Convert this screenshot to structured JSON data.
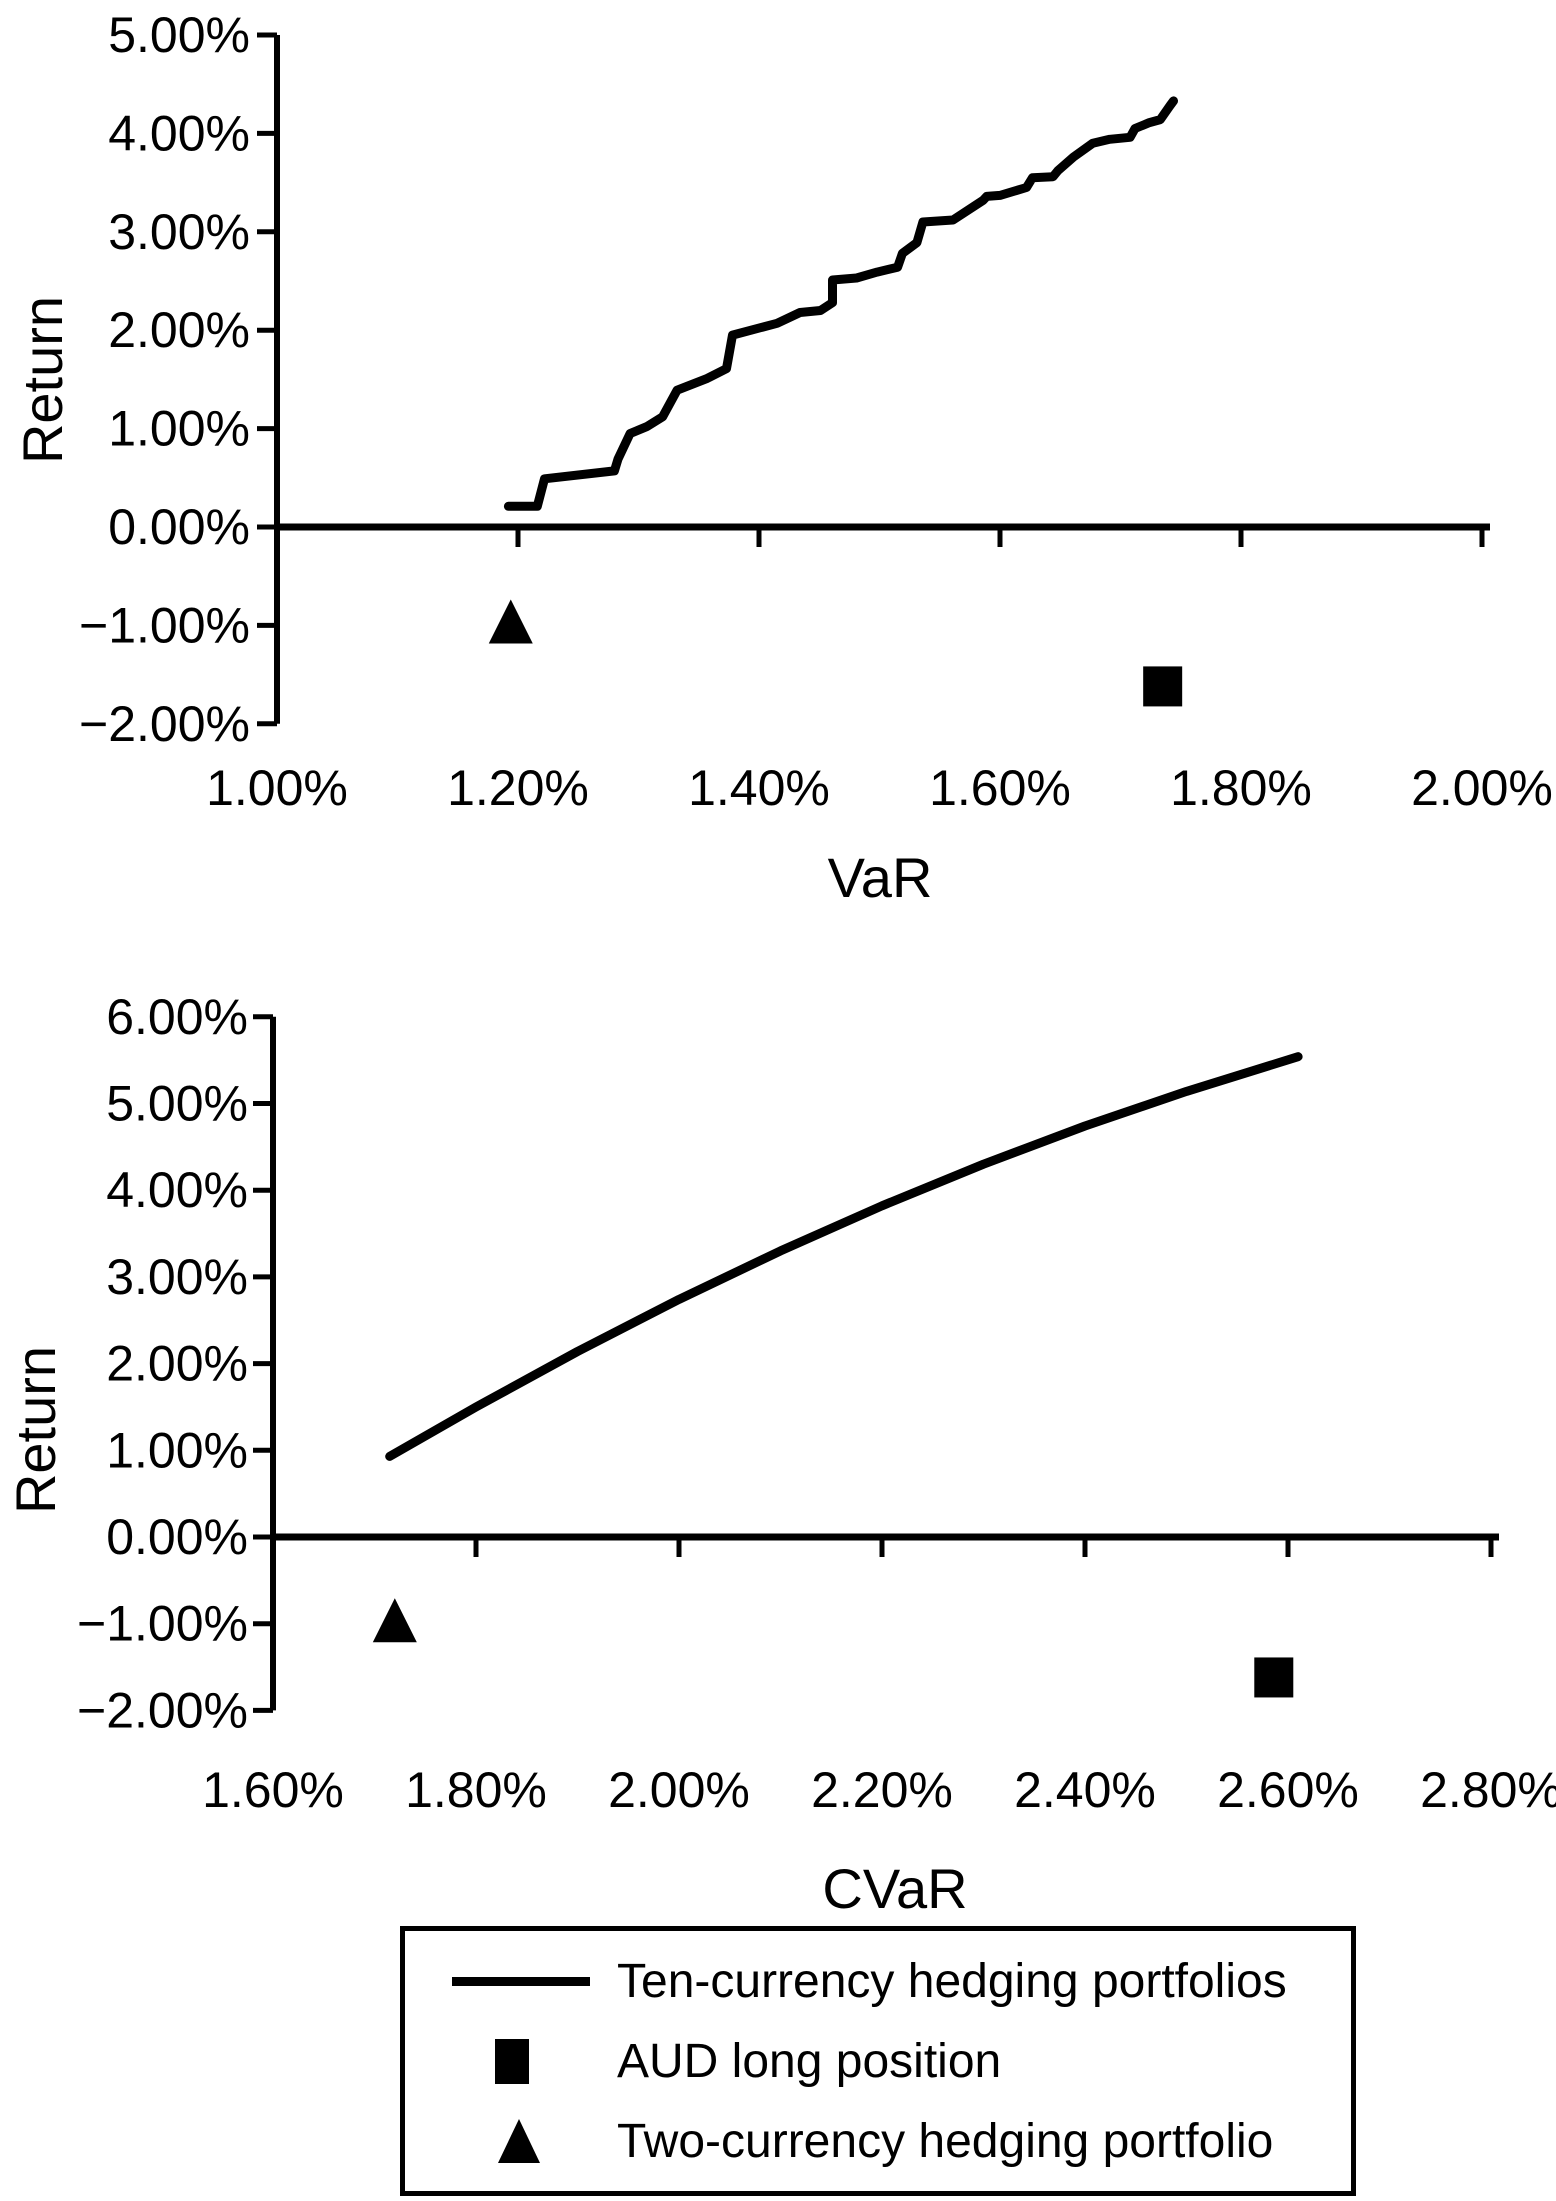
{
  "figure": {
    "background": "#ffffff",
    "ink": "#000000"
  },
  "chart_data": [
    {
      "type": "line",
      "title": "",
      "xlabel": "VaR",
      "ylabel": "Return",
      "xlim": [
        1.0,
        2.0
      ],
      "ylim": [
        -2.0,
        5.0
      ],
      "grid": false,
      "x_ticks": [
        {
          "v": 1.0,
          "label": "1.00%"
        },
        {
          "v": 1.2,
          "label": "1.20%"
        },
        {
          "v": 1.4,
          "label": "1.40%"
        },
        {
          "v": 1.6,
          "label": "1.60%"
        },
        {
          "v": 1.8,
          "label": "1.80%"
        },
        {
          "v": 2.0,
          "label": "2.00%"
        }
      ],
      "y_ticks": [
        {
          "v": 5,
          "label": "5.00%"
        },
        {
          "v": 4,
          "label": "4.00%"
        },
        {
          "v": 3,
          "label": "3.00%"
        },
        {
          "v": 2,
          "label": "2.00%"
        },
        {
          "v": 1,
          "label": "1.00%"
        },
        {
          "v": 0,
          "label": "0.00%"
        },
        {
          "v": -1,
          "label": "−1.00%"
        },
        {
          "v": -2,
          "label": "−2.00%"
        }
      ],
      "series": [
        {
          "name": "Ten-currency hedging portfolios",
          "points": [
            [
              1.192,
              0.21
            ],
            [
              1.216,
              0.21
            ],
            [
              1.222,
              0.49
            ],
            [
              1.28,
              0.57
            ],
            [
              1.283,
              0.69
            ],
            [
              1.293,
              0.95
            ],
            [
              1.307,
              1.02
            ],
            [
              1.32,
              1.12
            ],
            [
              1.332,
              1.39
            ],
            [
              1.357,
              1.51
            ],
            [
              1.373,
              1.61
            ],
            [
              1.378,
              1.95
            ],
            [
              1.415,
              2.07
            ],
            [
              1.434,
              2.18
            ],
            [
              1.451,
              2.2
            ],
            [
              1.461,
              2.28
            ],
            [
              1.461,
              2.51
            ],
            [
              1.481,
              2.53
            ],
            [
              1.498,
              2.59
            ],
            [
              1.515,
              2.64
            ],
            [
              1.519,
              2.78
            ],
            [
              1.531,
              2.89
            ],
            [
              1.536,
              3.1
            ],
            [
              1.561,
              3.12
            ],
            [
              1.586,
              3.32
            ],
            [
              1.589,
              3.36
            ],
            [
              1.6,
              3.37
            ],
            [
              1.622,
              3.45
            ],
            [
              1.627,
              3.55
            ],
            [
              1.644,
              3.56
            ],
            [
              1.648,
              3.62
            ],
            [
              1.661,
              3.76
            ],
            [
              1.677,
              3.9
            ],
            [
              1.691,
              3.94
            ],
            [
              1.708,
              3.96
            ],
            [
              1.712,
              4.05
            ],
            [
              1.724,
              4.11
            ],
            [
              1.733,
              4.14
            ],
            [
              1.741,
              4.28
            ],
            [
              1.744,
              4.33
            ]
          ]
        }
      ],
      "markers": [
        {
          "name": "AUD long position",
          "shape": "square",
          "x": 1.735,
          "y": -1.62
        },
        {
          "name": "Two-currency hedging portfolio",
          "shape": "triangle",
          "x": 1.194,
          "y": -0.96
        }
      ]
    },
    {
      "type": "line",
      "title": "",
      "xlabel": "CVaR",
      "ylabel": "Return",
      "xlim": [
        1.6,
        2.8
      ],
      "ylim": [
        -2.0,
        6.0
      ],
      "grid": false,
      "x_ticks": [
        {
          "v": 1.6,
          "label": "1.60%"
        },
        {
          "v": 1.8,
          "label": "1.80%"
        },
        {
          "v": 2.0,
          "label": "2.00%"
        },
        {
          "v": 2.2,
          "label": "2.20%"
        },
        {
          "v": 2.4,
          "label": "2.40%"
        },
        {
          "v": 2.6,
          "label": "2.60%"
        },
        {
          "v": 2.8,
          "label": "2.80%"
        }
      ],
      "y_ticks": [
        {
          "v": 6,
          "label": "6.00%"
        },
        {
          "v": 5,
          "label": "5.00%"
        },
        {
          "v": 4,
          "label": "4.00%"
        },
        {
          "v": 3,
          "label": "3.00%"
        },
        {
          "v": 2,
          "label": "2.00%"
        },
        {
          "v": 1,
          "label": "1.00%"
        },
        {
          "v": 0,
          "label": "0.00%"
        },
        {
          "v": -1,
          "label": "−1.00%"
        },
        {
          "v": -2,
          "label": "−2.00%"
        }
      ],
      "series": [
        {
          "name": "Ten-currency hedging portfolios",
          "points": [
            [
              1.715,
              0.93
            ],
            [
              1.8,
              1.5
            ],
            [
              1.9,
              2.14
            ],
            [
              2.0,
              2.74
            ],
            [
              2.1,
              3.3
            ],
            [
              2.2,
              3.82
            ],
            [
              2.3,
              4.3
            ],
            [
              2.4,
              4.74
            ],
            [
              2.5,
              5.14
            ],
            [
              2.61,
              5.54
            ]
          ]
        }
      ],
      "markers": [
        {
          "name": "AUD long position",
          "shape": "square",
          "x": 2.586,
          "y": -1.62
        },
        {
          "name": "Two-currency hedging portfolio",
          "shape": "triangle",
          "x": 1.72,
          "y": -0.96
        }
      ]
    }
  ],
  "legend": {
    "items": [
      {
        "shape": "line",
        "label": "Ten-currency hedging portfolios"
      },
      {
        "shape": "square",
        "label": "AUD long position"
      },
      {
        "shape": "triangle",
        "label": "Two-currency hedging portfolio"
      }
    ]
  }
}
